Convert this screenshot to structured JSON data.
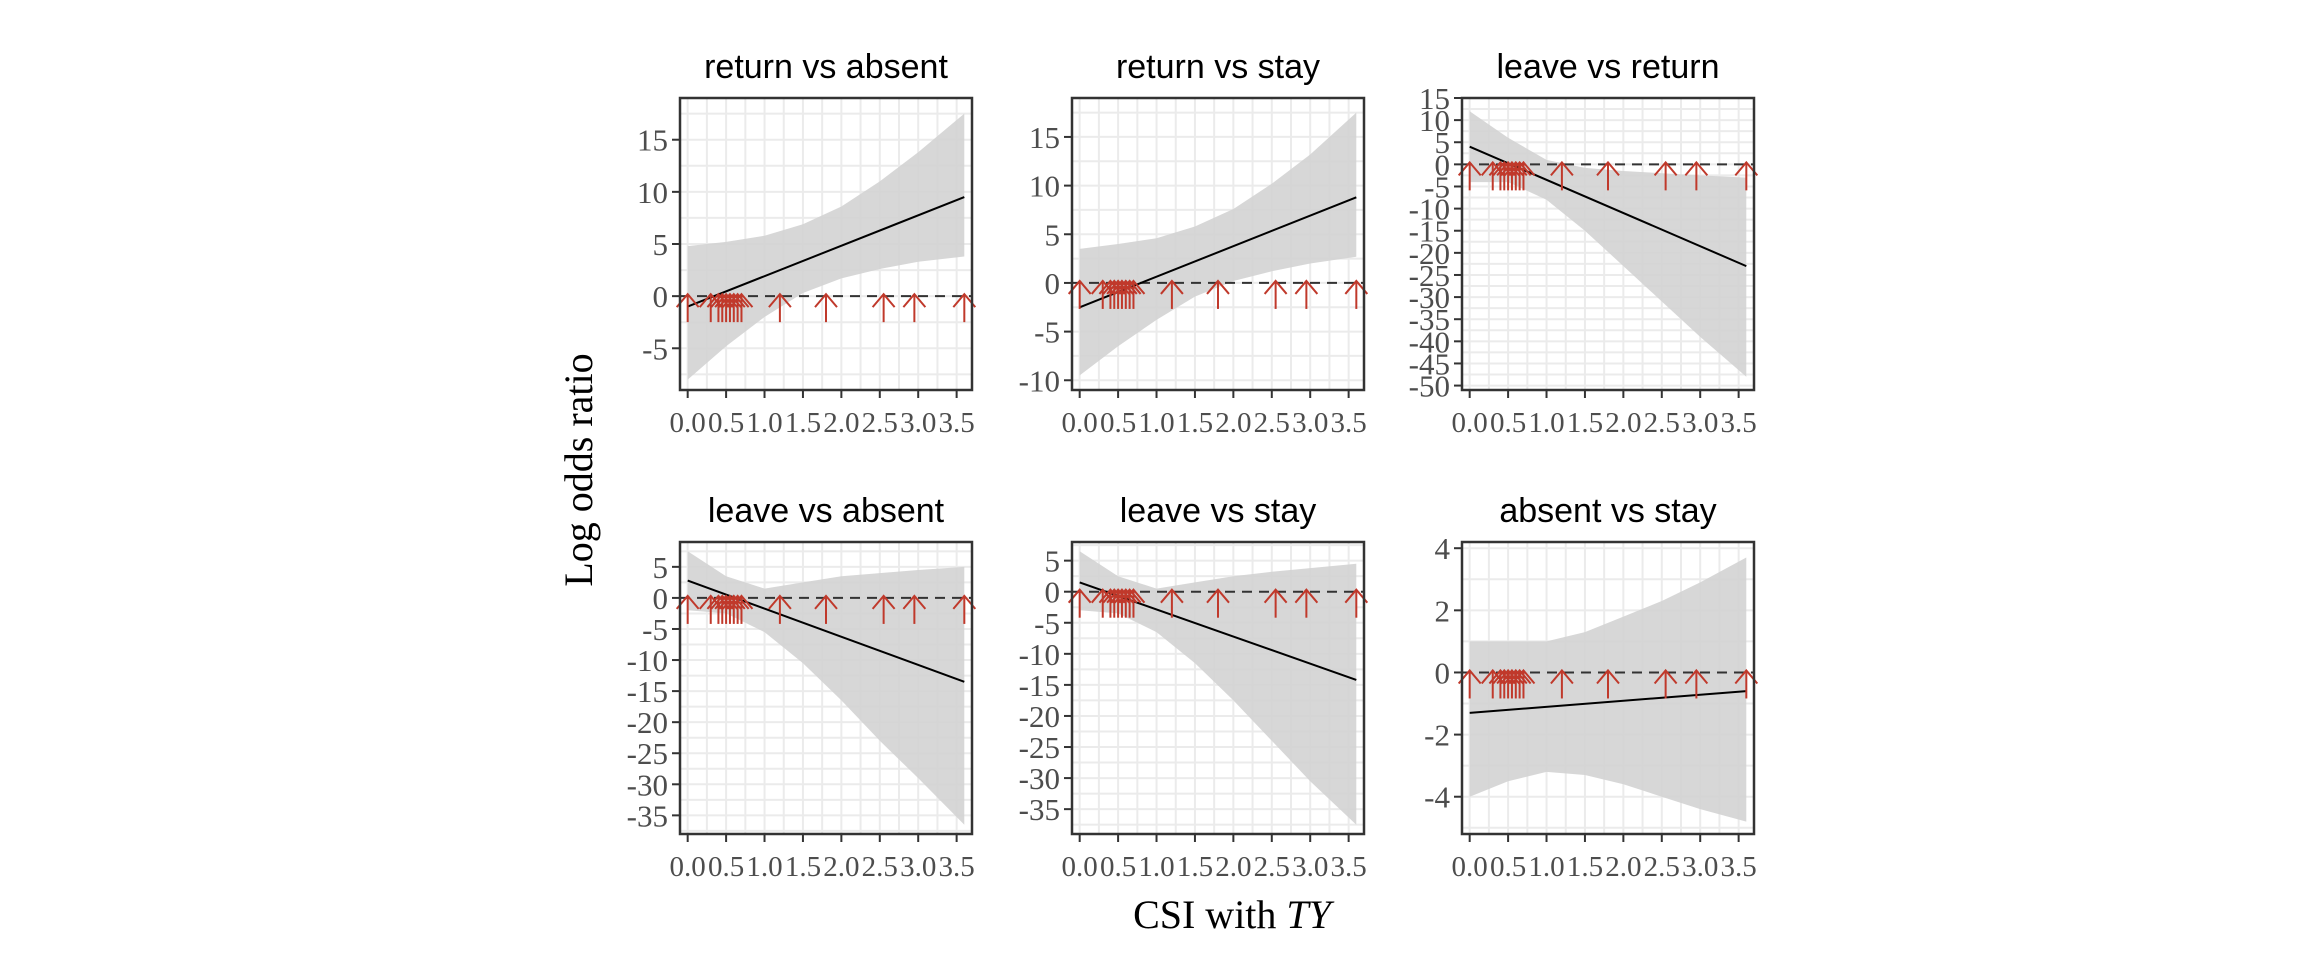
{
  "figure": {
    "ylabel": "Log odds ratio",
    "xlabel_prefix": "CSI with ",
    "xlabel_italic": "TY"
  },
  "colors": {
    "band": "#d3d3d3",
    "fit": "#000000",
    "zero_line": "#333333",
    "rug": "#c0392b",
    "grid": "#ebebeb",
    "frame": "#333333"
  },
  "chart_data": [
    {
      "type": "line",
      "title": "return vs absent",
      "xlim": [
        -0.1,
        3.7
      ],
      "ylim": [
        -9,
        19
      ],
      "x_ticks": [
        "0.0",
        "0.5",
        "1.0",
        "1.5",
        "2.0",
        "2.5",
        "3.0",
        "3.5"
      ],
      "y_ticks": [
        "-5",
        "0",
        "5",
        "10",
        "15"
      ],
      "fit": {
        "x": [
          0.0,
          3.6
        ],
        "y": [
          -1.0,
          9.5
        ]
      },
      "band": {
        "x": [
          0.0,
          0.5,
          1.0,
          1.5,
          2.0,
          2.5,
          3.0,
          3.6
        ],
        "lower": [
          -8.0,
          -4.8,
          -2.0,
          0.3,
          1.7,
          2.6,
          3.3,
          3.8
        ],
        "upper": [
          4.8,
          5.2,
          5.8,
          6.9,
          8.6,
          11.0,
          13.8,
          17.5
        ]
      },
      "rug_x": [
        0.0,
        0.3,
        0.4,
        0.45,
        0.5,
        0.55,
        0.6,
        0.65,
        0.7,
        1.2,
        1.8,
        2.55,
        2.95,
        3.6
      ],
      "rug_level": 0,
      "grid": true
    },
    {
      "type": "line",
      "title": "return vs stay",
      "xlim": [
        -0.1,
        3.7
      ],
      "ylim": [
        -11,
        19
      ],
      "x_ticks": [
        "0.0",
        "0.5",
        "1.0",
        "1.5",
        "2.0",
        "2.5",
        "3.0",
        "3.5"
      ],
      "y_ticks": [
        "-10",
        "-5",
        "0",
        "5",
        "10",
        "15"
      ],
      "fit": {
        "x": [
          0.0,
          3.6
        ],
        "y": [
          -2.5,
          8.8
        ]
      },
      "band": {
        "x": [
          0.0,
          0.5,
          1.0,
          1.5,
          2.0,
          2.5,
          3.0,
          3.6
        ],
        "lower": [
          -9.5,
          -6.5,
          -3.8,
          -1.4,
          0.2,
          1.2,
          2.0,
          2.7
        ],
        "upper": [
          3.5,
          4.0,
          4.6,
          5.8,
          7.6,
          10.2,
          13.2,
          17.5
        ]
      },
      "rug_x": [
        0.0,
        0.3,
        0.4,
        0.45,
        0.5,
        0.55,
        0.6,
        0.65,
        0.7,
        1.2,
        1.8,
        2.55,
        2.95,
        3.6
      ],
      "rug_level": 0,
      "grid": true
    },
    {
      "type": "line",
      "title": "leave vs return",
      "xlim": [
        -0.1,
        3.7
      ],
      "ylim": [
        -51,
        15
      ],
      "x_ticks": [
        "0.0",
        "0.5",
        "1.0",
        "1.5",
        "2.0",
        "2.5",
        "3.0",
        "3.5"
      ],
      "y_ticks": [
        "-50",
        "-45",
        "-40",
        "-35",
        "-30",
        "-25",
        "-20",
        "-15",
        "-10",
        "-5",
        "0",
        "5",
        "10",
        "15"
      ],
      "fit": {
        "x": [
          0.0,
          3.6
        ],
        "y": [
          4.0,
          -23.0
        ]
      },
      "band": {
        "x": [
          0.0,
          0.5,
          1.0,
          1.5,
          2.0,
          2.5,
          3.0,
          3.6
        ],
        "lower": [
          -4.0,
          -4.0,
          -8.0,
          -15.0,
          -23.0,
          -31.0,
          -39.0,
          -48.0
        ],
        "upper": [
          12.0,
          6.0,
          1.0,
          -0.8,
          -1.5,
          -2.0,
          -2.5,
          -3.0
        ]
      },
      "rug_x": [
        0.0,
        0.3,
        0.4,
        0.45,
        0.5,
        0.55,
        0.6,
        0.65,
        0.7,
        1.2,
        1.8,
        2.55,
        2.95,
        3.6
      ],
      "rug_level": 0,
      "grid": true
    },
    {
      "type": "line",
      "title": "leave vs absent",
      "xlim": [
        -0.1,
        3.7
      ],
      "ylim": [
        -38,
        9
      ],
      "x_ticks": [
        "0.0",
        "0.5",
        "1.0",
        "1.5",
        "2.0",
        "2.5",
        "3.0",
        "3.5"
      ],
      "y_ticks": [
        "-35",
        "-30",
        "-25",
        "-20",
        "-15",
        "-10",
        "-5",
        "0",
        "5"
      ],
      "fit": {
        "x": [
          0.0,
          3.6
        ],
        "y": [
          2.8,
          -13.5
        ]
      },
      "band": {
        "x": [
          0.0,
          0.5,
          1.0,
          1.5,
          2.0,
          2.5,
          3.0,
          3.6
        ],
        "lower": [
          -2.0,
          -2.5,
          -5.5,
          -10.5,
          -16.5,
          -23.0,
          -29.0,
          -36.5
        ],
        "upper": [
          7.5,
          3.5,
          1.5,
          2.5,
          3.5,
          4.0,
          4.5,
          5.0
        ]
      },
      "rug_x": [
        0.0,
        0.3,
        0.4,
        0.45,
        0.5,
        0.55,
        0.6,
        0.65,
        0.7,
        1.2,
        1.8,
        2.55,
        2.95,
        3.6
      ],
      "rug_level": 0,
      "grid": true
    },
    {
      "type": "line",
      "title": "leave vs stay",
      "xlim": [
        -0.1,
        3.7
      ],
      "ylim": [
        -39,
        8
      ],
      "x_ticks": [
        "0.0",
        "0.5",
        "1.0",
        "1.5",
        "2.0",
        "2.5",
        "3.0",
        "3.5"
      ],
      "y_ticks": [
        "-35",
        "-30",
        "-25",
        "-20",
        "-15",
        "-10",
        "-5",
        "0",
        "5"
      ],
      "fit": {
        "x": [
          0.0,
          3.6
        ],
        "y": [
          1.5,
          -14.2
        ]
      },
      "band": {
        "x": [
          0.0,
          0.5,
          1.0,
          1.5,
          2.0,
          2.5,
          3.0,
          3.6
        ],
        "lower": [
          -3.0,
          -3.5,
          -6.5,
          -11.5,
          -17.5,
          -24.0,
          -30.5,
          -37.5
        ],
        "upper": [
          6.5,
          2.5,
          0.5,
          1.5,
          2.5,
          3.2,
          3.8,
          4.5
        ]
      },
      "rug_x": [
        0.0,
        0.3,
        0.4,
        0.45,
        0.5,
        0.55,
        0.6,
        0.65,
        0.7,
        1.2,
        1.8,
        2.55,
        2.95,
        3.6
      ],
      "rug_level": 0,
      "grid": true
    },
    {
      "type": "line",
      "title": "absent vs stay",
      "xlim": [
        -0.1,
        3.7
      ],
      "ylim": [
        -5.2,
        4.2
      ],
      "x_ticks": [
        "0.0",
        "0.5",
        "1.0",
        "1.5",
        "2.0",
        "2.5",
        "3.0",
        "3.5"
      ],
      "y_ticks": [
        "-4",
        "-2",
        "0",
        "2",
        "4"
      ],
      "fit": {
        "x": [
          0.0,
          3.6
        ],
        "y": [
          -1.3,
          -0.6
        ]
      },
      "band": {
        "x": [
          0.0,
          0.5,
          1.0,
          1.5,
          2.0,
          2.5,
          3.0,
          3.6
        ],
        "lower": [
          -4.0,
          -3.5,
          -3.2,
          -3.3,
          -3.6,
          -4.0,
          -4.4,
          -4.8
        ],
        "upper": [
          1.0,
          1.0,
          1.0,
          1.3,
          1.8,
          2.3,
          2.9,
          3.7
        ]
      },
      "rug_x": [
        0.0,
        0.3,
        0.4,
        0.45,
        0.5,
        0.55,
        0.6,
        0.65,
        0.7,
        1.2,
        1.8,
        2.55,
        2.95,
        3.6
      ],
      "rug_level": 0,
      "grid": true
    }
  ]
}
